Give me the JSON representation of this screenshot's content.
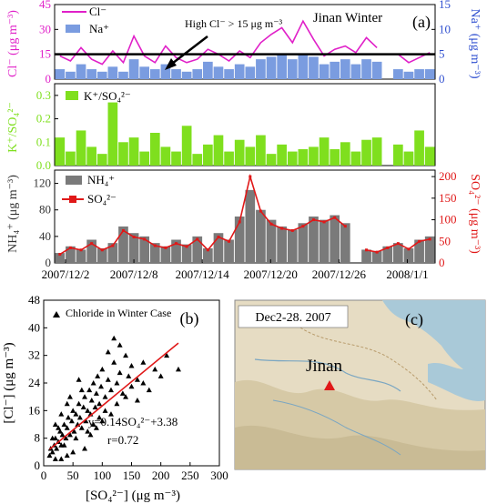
{
  "chart_data": [
    {
      "panel_label": "(a)",
      "type": "area",
      "title": "Jinan Winter",
      "ylabel_left": "Cl⁻ (μg m⁻³)",
      "ylabel_right": "Na⁺ (μg m⁻³)",
      "yticks_left": [
        "0",
        "15",
        "30",
        "45"
      ],
      "yticks_right": [
        "0",
        "5",
        "10",
        "15"
      ],
      "ylim_left": [
        0,
        45
      ],
      "ylim_right": [
        0,
        15
      ],
      "annotation": "High Cl⁻ > 15 μg m⁻³",
      "threshold": 15,
      "series": [
        {
          "name": "Cl⁻",
          "color": "#e020c8",
          "x": [
            0,
            1,
            2,
            3,
            4,
            5,
            6,
            7,
            8,
            9,
            10,
            11,
            12,
            13,
            14,
            15,
            16,
            17,
            18,
            19,
            20,
            21,
            22,
            23,
            24,
            25,
            26,
            27,
            28,
            29,
            30,
            31,
            32,
            33,
            34,
            35
          ],
          "values": [
            14,
            11,
            19,
            12,
            9,
            17,
            10,
            26,
            14,
            10,
            20,
            13,
            10,
            12,
            18,
            15,
            11,
            17,
            13,
            22,
            27,
            31,
            22,
            35,
            24,
            14,
            18,
            20,
            16,
            25,
            19,
            0,
            15,
            10,
            13,
            16
          ]
        },
        {
          "name": "Na⁺",
          "color": "#7a9ce0",
          "x": [
            0,
            1,
            2,
            3,
            4,
            5,
            6,
            7,
            8,
            9,
            10,
            11,
            12,
            13,
            14,
            15,
            16,
            17,
            18,
            19,
            20,
            21,
            22,
            23,
            24,
            25,
            26,
            27,
            28,
            29,
            30,
            31,
            32,
            33,
            34,
            35
          ],
          "values": [
            2,
            1.5,
            3,
            2,
            1.5,
            2.5,
            1.5,
            4,
            2.5,
            2,
            3,
            2,
            1.5,
            2,
            3.5,
            2.5,
            2,
            3,
            2.5,
            4,
            4.5,
            5,
            4,
            5,
            4.5,
            3,
            3.5,
            4,
            3,
            4,
            3.5,
            0,
            2,
            1.5,
            2,
            2
          ]
        }
      ]
    },
    {
      "type": "area",
      "ylabel": "K⁺/SO₄²⁻",
      "yticks": [
        "0.0",
        "0.1",
        "0.2",
        "0.3"
      ],
      "ylim": [
        0,
        0.35
      ],
      "series": [
        {
          "name": "K⁺/SO₄²⁻",
          "color": "#7fdf1e",
          "x": [
            0,
            1,
            2,
            3,
            4,
            5,
            6,
            7,
            8,
            9,
            10,
            11,
            12,
            13,
            14,
            15,
            16,
            17,
            18,
            19,
            20,
            21,
            22,
            23,
            24,
            25,
            26,
            27,
            28,
            29,
            30,
            31,
            32,
            33,
            34,
            35
          ],
          "values": [
            0.12,
            0.06,
            0.15,
            0.08,
            0.05,
            0.27,
            0.1,
            0.12,
            0.06,
            0.14,
            0.08,
            0.06,
            0.17,
            0.05,
            0.09,
            0.13,
            0.06,
            0.11,
            0.08,
            0.13,
            0.05,
            0.09,
            0.06,
            0.07,
            0.08,
            0.12,
            0.07,
            0.1,
            0.06,
            0.11,
            0.12,
            0,
            0.09,
            0.06,
            0.15,
            0.08
          ]
        }
      ]
    },
    {
      "type": "area",
      "ylabel_left": "NH₄⁺ (μg m⁻³)",
      "ylabel_right": "SO₄²⁻ (μg m⁻³)",
      "yticks_left": [
        "0",
        "40",
        "80",
        "120"
      ],
      "yticks_right": [
        "0",
        "50",
        "100",
        "150",
        "200"
      ],
      "ylim_left": [
        0,
        140
      ],
      "ylim_right": [
        0,
        215
      ],
      "xticks": [
        "2007/12/2",
        "2007/12/8",
        "2007/12/14",
        "2007/12/20",
        "2007/12/26",
        "2008/1/1"
      ],
      "series": [
        {
          "name": "NH₄⁺",
          "color": "#7a7a7a",
          "x": [
            0,
            1,
            2,
            3,
            4,
            5,
            6,
            7,
            8,
            9,
            10,
            11,
            12,
            13,
            14,
            15,
            16,
            17,
            18,
            19,
            20,
            21,
            22,
            23,
            24,
            25,
            26,
            27,
            28,
            29,
            30,
            31,
            32,
            33,
            34,
            35
          ],
          "values": [
            15,
            25,
            20,
            35,
            22,
            30,
            55,
            45,
            40,
            30,
            25,
            35,
            28,
            40,
            22,
            45,
            35,
            70,
            110,
            80,
            65,
            55,
            50,
            60,
            70,
            65,
            72,
            60,
            0,
            20,
            18,
            25,
            30,
            22,
            35,
            40
          ]
        },
        {
          "name": "SO₄²⁻",
          "color": "#e01818",
          "x": [
            0,
            1,
            2,
            3,
            4,
            5,
            6,
            7,
            8,
            9,
            10,
            11,
            12,
            13,
            14,
            15,
            16,
            17,
            18,
            19,
            20,
            21,
            22,
            23,
            24,
            25,
            26,
            27,
            28,
            29,
            30,
            31,
            32,
            33,
            34,
            35
          ],
          "values": [
            20,
            35,
            30,
            45,
            30,
            40,
            75,
            60,
            55,
            40,
            35,
            45,
            38,
            55,
            30,
            60,
            50,
            95,
            200,
            120,
            90,
            80,
            75,
            85,
            100,
            95,
            105,
            85,
            0,
            30,
            25,
            35,
            45,
            32,
            50,
            55
          ]
        }
      ]
    },
    {
      "panel_label": "(b)",
      "type": "scatter",
      "xlabel": "[SO₄²⁻] (μg m⁻³)",
      "ylabel": "[Cl⁻] (μg m⁻³)",
      "xticks": [
        "0",
        "50",
        "100",
        "150",
        "200",
        "250",
        "300"
      ],
      "yticks": [
        "0",
        "8",
        "16",
        "24",
        "32",
        "40",
        "48"
      ],
      "xlim": [
        0,
        300
      ],
      "ylim": [
        0,
        48
      ],
      "legend": "Chloride in Winter Case",
      "equation": "y=0.14SO₄²⁻+3.38",
      "r_text": "r=0.72",
      "fit": {
        "slope": 0.14,
        "intercept": 3.38,
        "x_range": [
          10,
          230
        ]
      },
      "points": [
        [
          10,
          3
        ],
        [
          12,
          5
        ],
        [
          15,
          4
        ],
        [
          18,
          6
        ],
        [
          20,
          8
        ],
        [
          22,
          5
        ],
        [
          25,
          7
        ],
        [
          28,
          10
        ],
        [
          30,
          6
        ],
        [
          32,
          9
        ],
        [
          35,
          12
        ],
        [
          38,
          8
        ],
        [
          40,
          11
        ],
        [
          42,
          14
        ],
        [
          45,
          9
        ],
        [
          48,
          13
        ],
        [
          50,
          16
        ],
        [
          52,
          10
        ],
        [
          55,
          15
        ],
        [
          58,
          12
        ],
        [
          60,
          18
        ],
        [
          62,
          14
        ],
        [
          65,
          11
        ],
        [
          68,
          17
        ],
        [
          70,
          20
        ],
        [
          72,
          13
        ],
        [
          75,
          16
        ],
        [
          78,
          22
        ],
        [
          80,
          15
        ],
        [
          82,
          19
        ],
        [
          85,
          24
        ],
        [
          88,
          17
        ],
        [
          90,
          21
        ],
        [
          92,
          26
        ],
        [
          95,
          18
        ],
        [
          98,
          23
        ],
        [
          100,
          28
        ],
        [
          105,
          20
        ],
        [
          110,
          25
        ],
        [
          115,
          22
        ],
        [
          120,
          30
        ],
        [
          125,
          24
        ],
        [
          130,
          27
        ],
        [
          135,
          21
        ],
        [
          140,
          32
        ],
        [
          145,
          26
        ],
        [
          150,
          29
        ],
        [
          160,
          25
        ],
        [
          170,
          30
        ],
        [
          180,
          22
        ],
        [
          190,
          28
        ],
        [
          200,
          26
        ],
        [
          210,
          32
        ],
        [
          230,
          28
        ],
        [
          120,
          37
        ],
        [
          130,
          35
        ],
        [
          20,
          12
        ],
        [
          30,
          15
        ],
        [
          40,
          18
        ],
        [
          15,
          8
        ],
        [
          25,
          11
        ],
        [
          35,
          6
        ],
        [
          45,
          20
        ],
        [
          55,
          8
        ],
        [
          65,
          22
        ],
        [
          75,
          10
        ],
        [
          85,
          12
        ],
        [
          95,
          14
        ],
        [
          105,
          16
        ],
        [
          110,
          33
        ],
        [
          60,
          25
        ],
        [
          70,
          5
        ],
        [
          50,
          4
        ],
        [
          40,
          3
        ],
        [
          30,
          2
        ],
        [
          20,
          2
        ],
        [
          80,
          9
        ],
        [
          90,
          11
        ],
        [
          100,
          13
        ],
        [
          115,
          15
        ],
        [
          125,
          18
        ],
        [
          140,
          20
        ],
        [
          150,
          23
        ],
        [
          160,
          19
        ],
        [
          170,
          24
        ]
      ]
    },
    {
      "panel_label": "(c)",
      "type": "map",
      "date_range": "Dec2-28. 2007",
      "city": "Jinan"
    }
  ]
}
